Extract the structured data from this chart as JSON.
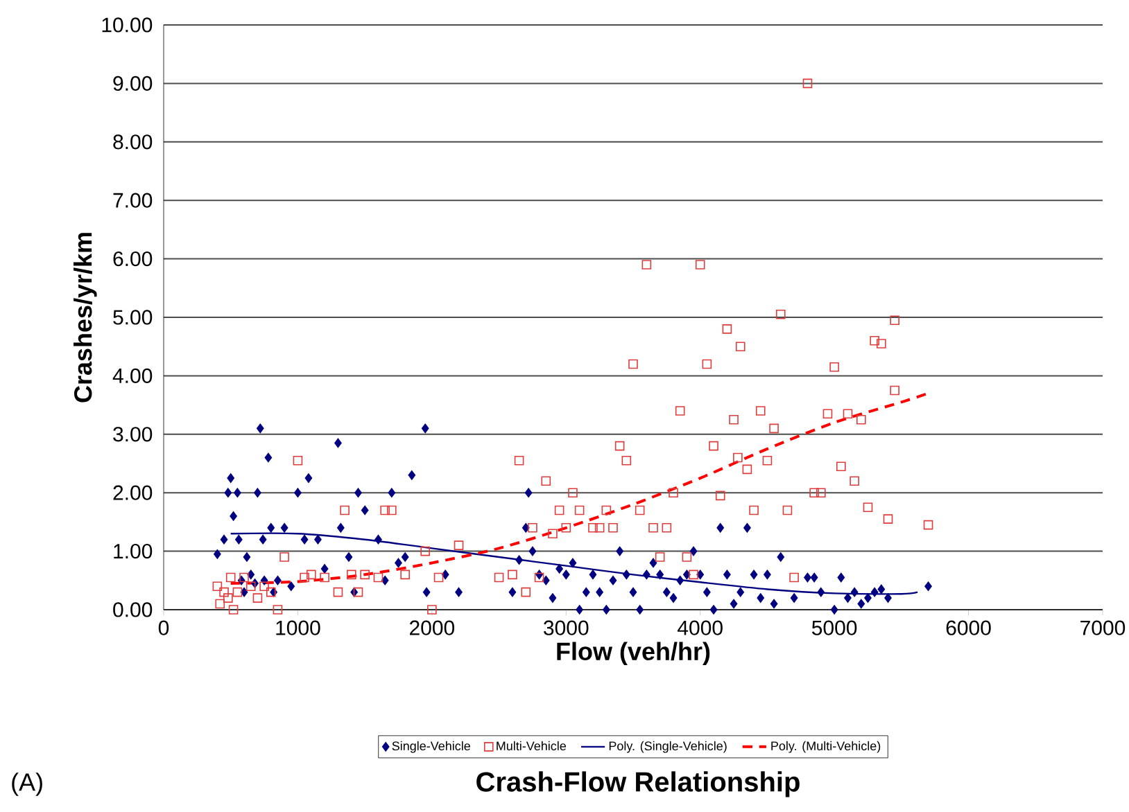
{
  "chart_data": {
    "type": "scatter",
    "title": "Crash-Flow Relationship",
    "xlabel": "Flow (veh/hr)",
    "ylabel": "Crashes/yr/km",
    "annotations": [
      "(A)"
    ],
    "xlim": [
      0,
      7000
    ],
    "xticks": [
      0,
      1000,
      2000,
      3000,
      4000,
      5000,
      6000,
      7000
    ],
    "ylim": [
      0,
      10
    ],
    "yticks": [
      {
        "value": 0,
        "label": "0.00"
      },
      {
        "value": 1,
        "label": "1.00"
      },
      {
        "value": 2,
        "label": "2.00"
      },
      {
        "value": 3,
        "label": "3.00"
      },
      {
        "value": 4,
        "label": "4.00"
      },
      {
        "value": 5,
        "label": "5.00"
      },
      {
        "value": 6,
        "label": "6.00"
      },
      {
        "value": 7,
        "label": "7.00"
      },
      {
        "value": 8,
        "label": "8.00"
      },
      {
        "value": 9,
        "label": "9.00"
      },
      {
        "value": 10,
        "label": "10.00"
      }
    ],
    "grid": "y",
    "legend": "bottom",
    "series": [
      {
        "name": "Single-Vehicle",
        "marker": "diamond",
        "color": "#000080",
        "x": [
          400,
          450,
          480,
          500,
          520,
          550,
          560,
          580,
          600,
          620,
          650,
          680,
          700,
          720,
          740,
          750,
          780,
          800,
          820,
          850,
          900,
          950,
          1000,
          1050,
          1080,
          1150,
          1200,
          1300,
          1320,
          1380,
          1420,
          1450,
          1500,
          1600,
          1650,
          1700,
          1750,
          1800,
          1850,
          1950,
          1960,
          2100,
          2200,
          2600,
          2650,
          2700,
          2720,
          2750,
          2800,
          2850,
          2900,
          2950,
          3000,
          3050,
          3100,
          3150,
          3200,
          3250,
          3300,
          3350,
          3400,
          3450,
          3500,
          3550,
          3600,
          3650,
          3700,
          3750,
          3800,
          3850,
          3900,
          3950,
          4000,
          4050,
          4100,
          4150,
          4200,
          4250,
          4300,
          4350,
          4400,
          4450,
          4500,
          4550,
          4600,
          4700,
          4800,
          4850,
          4900,
          5000,
          5050,
          5100,
          5150,
          5200,
          5250,
          5300,
          5350,
          5400,
          5700
        ],
        "values": [
          0.95,
          1.2,
          2.0,
          2.25,
          1.6,
          2.0,
          1.2,
          0.5,
          0.3,
          0.9,
          0.6,
          0.45,
          2.0,
          3.1,
          1.2,
          0.5,
          2.6,
          1.4,
          0.3,
          0.5,
          1.4,
          0.4,
          2.0,
          1.2,
          2.25,
          1.2,
          0.7,
          2.85,
          1.4,
          0.9,
          0.3,
          2.0,
          1.7,
          1.2,
          0.5,
          2.0,
          0.8,
          0.9,
          2.3,
          3.1,
          0.3,
          0.6,
          0.3,
          0.3,
          0.85,
          1.4,
          2.0,
          1.0,
          0.6,
          0.5,
          0.2,
          0.7,
          0.6,
          0.8,
          0.0,
          0.3,
          0.6,
          0.3,
          0.0,
          0.5,
          1.0,
          0.6,
          0.3,
          0.0,
          0.6,
          0.8,
          0.6,
          0.3,
          0.2,
          0.5,
          0.6,
          1.0,
          0.6,
          0.3,
          0.0,
          1.4,
          0.6,
          0.1,
          0.3,
          1.4,
          0.6,
          0.2,
          0.6,
          0.1,
          0.9,
          0.2,
          0.55,
          0.55,
          0.3,
          0.0,
          0.55,
          0.2,
          0.3,
          0.1,
          0.2,
          0.3,
          0.35,
          0.2,
          0.4
        ]
      },
      {
        "name": "Multi-Vehicle",
        "marker": "square",
        "color": "#e03c3c",
        "x": [
          400,
          420,
          450,
          480,
          500,
          520,
          550,
          600,
          650,
          700,
          750,
          800,
          850,
          900,
          1000,
          1050,
          1100,
          1200,
          1300,
          1350,
          1400,
          1450,
          1500,
          1600,
          1650,
          1700,
          1800,
          1950,
          2000,
          2050,
          2200,
          2500,
          2600,
          2650,
          2700,
          2750,
          2800,
          2850,
          2900,
          2950,
          3000,
          3050,
          3100,
          3200,
          3250,
          3300,
          3350,
          3400,
          3450,
          3500,
          3550,
          3600,
          3650,
          3700,
          3750,
          3800,
          3850,
          3900,
          3950,
          4000,
          4050,
          4100,
          4150,
          4200,
          4250,
          4280,
          4300,
          4350,
          4400,
          4450,
          4500,
          4550,
          4600,
          4650,
          4700,
          4800,
          4850,
          4900,
          4950,
          5000,
          5050,
          5100,
          5150,
          5200,
          5250,
          5300,
          5350,
          5400,
          5450,
          5450,
          5700
        ],
        "values": [
          0.4,
          0.1,
          0.3,
          0.2,
          0.55,
          0.0,
          0.3,
          0.55,
          0.4,
          0.2,
          0.4,
          0.3,
          0.0,
          0.9,
          2.55,
          0.55,
          0.6,
          0.55,
          0.3,
          1.7,
          0.6,
          0.3,
          0.6,
          0.55,
          1.7,
          1.7,
          0.6,
          1.0,
          0.0,
          0.55,
          1.1,
          0.55,
          0.6,
          2.55,
          0.3,
          1.4,
          0.55,
          2.2,
          1.3,
          1.7,
          1.4,
          2.0,
          1.7,
          1.4,
          1.4,
          1.7,
          1.4,
          2.8,
          2.55,
          4.2,
          1.7,
          5.9,
          1.4,
          0.9,
          1.4,
          2.0,
          3.4,
          0.9,
          0.6,
          5.9,
          4.2,
          2.8,
          1.95,
          4.8,
          3.25,
          2.6,
          4.5,
          2.4,
          1.7,
          3.4,
          2.55,
          3.1,
          5.05,
          1.7,
          0.55,
          9.0,
          2.0,
          2.0,
          3.35,
          4.15,
          2.45,
          3.35,
          2.2,
          3.25,
          1.75,
          4.6,
          4.55,
          1.55,
          3.75,
          4.95,
          1.45
        ]
      },
      {
        "name": "Poly. (Single-Vehicle)",
        "type": "line",
        "line_style": "solid",
        "color": "#000080",
        "x": [
          500,
          1000,
          1500,
          2000,
          2500,
          3000,
          3500,
          4000,
          4500,
          5000,
          5500,
          5620
        ],
        "values": [
          1.3,
          1.3,
          1.2,
          1.05,
          0.9,
          0.75,
          0.6,
          0.47,
          0.35,
          0.28,
          0.27,
          0.3
        ]
      },
      {
        "name": "Poly. (Multi-Vehicle)",
        "type": "line",
        "line_style": "dashed",
        "color": "#ff0000",
        "x": [
          500,
          1000,
          1500,
          2000,
          2500,
          3000,
          3500,
          4000,
          4500,
          5000,
          5500,
          5700
        ],
        "values": [
          0.45,
          0.48,
          0.6,
          0.8,
          1.05,
          1.4,
          1.8,
          2.25,
          2.75,
          3.2,
          3.55,
          3.7
        ]
      }
    ]
  }
}
